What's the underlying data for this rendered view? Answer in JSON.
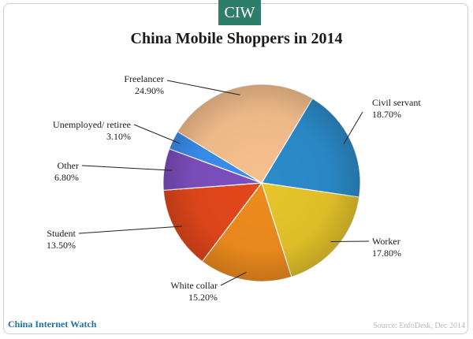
{
  "brand_badge": "CIW",
  "footer": {
    "brand": "China Internet Watch",
    "source": "Source: EnfoDesk, Dec 2014"
  },
  "chart_data": {
    "type": "pie",
    "title": "China Mobile Shoppers in 2014",
    "slices": [
      {
        "label": "Civil servant",
        "value": 18.7,
        "display": "18.70%",
        "color": "#2b8ccb"
      },
      {
        "label": "Worker",
        "value": 17.8,
        "display": "17.80%",
        "color": "#e7c52a"
      },
      {
        "label": "White collar",
        "value": 15.2,
        "display": "15.20%",
        "color": "#f08c1e"
      },
      {
        "label": "Student",
        "value": 13.5,
        "display": "13.50%",
        "color": "#e4471b"
      },
      {
        "label": "Other",
        "value": 6.8,
        "display": "6.80%",
        "color": "#7e4fbf"
      },
      {
        "label": "Unemployed/ retiree",
        "value": 3.1,
        "display": "3.10%",
        "color": "#3a8ff0"
      },
      {
        "label": "Freelancer",
        "value": 24.9,
        "display": "24.90%",
        "color": "#f7c08e"
      }
    ]
  }
}
